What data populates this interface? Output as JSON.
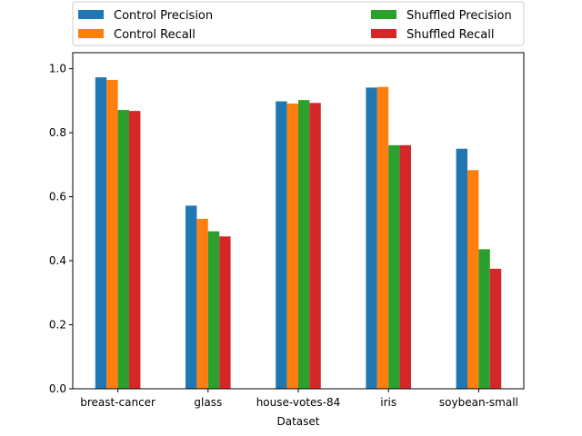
{
  "chart_data": {
    "type": "bar",
    "title": "",
    "xlabel": "Dataset",
    "ylabel": "",
    "ylim": [
      0,
      1.05
    ],
    "yticks": [
      0.0,
      0.2,
      0.4,
      0.6,
      0.8,
      1.0
    ],
    "ytick_labels": [
      "0.0",
      "0.2",
      "0.4",
      "0.6",
      "0.8",
      "1.0"
    ],
    "grid": false,
    "legend_position": "top",
    "categories": [
      "breast-cancer",
      "glass",
      "house-votes-84",
      "iris",
      "soybean-small"
    ],
    "series": [
      {
        "name": "Control Precision",
        "color": "#1f77b4",
        "values": [
          0.973,
          0.572,
          0.898,
          0.941,
          0.75
        ]
      },
      {
        "name": "Control Recall",
        "color": "#ff7f0e",
        "values": [
          0.965,
          0.531,
          0.891,
          0.943,
          0.683
        ]
      },
      {
        "name": "Shuffled Precision",
        "color": "#2ca02c",
        "values": [
          0.871,
          0.492,
          0.902,
          0.761,
          0.436
        ]
      },
      {
        "name": "Shuffled Recall",
        "color": "#d62728",
        "values": [
          0.868,
          0.476,
          0.893,
          0.761,
          0.375
        ]
      }
    ]
  }
}
